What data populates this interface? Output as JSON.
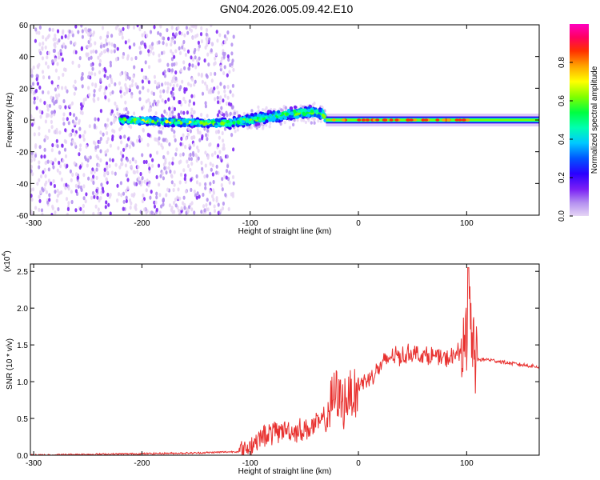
{
  "title": "GN04.2026.005.09.42.E10",
  "colors": {
    "snr_line": "#e8312f",
    "axis": "#000000"
  },
  "chart_data": [
    {
      "type": "heatmap",
      "xlabel": "Height of straight line (km)",
      "ylabel": "Frequency (Hz)",
      "xlim": [
        -303,
        167
      ],
      "ylim": [
        -60,
        60
      ],
      "xticks": [
        -300,
        -200,
        -100,
        0,
        100
      ],
      "xtick_labels": [
        "-300",
        "-200",
        "-100",
        "0",
        "100"
      ],
      "yticks": [
        -60,
        -40,
        -20,
        0,
        20,
        40,
        60
      ],
      "ytick_labels": [
        "-60",
        "-40",
        "-20",
        "0",
        "20",
        "40",
        "60"
      ],
      "colorbar": {
        "label": "Normalized spectral amplitude",
        "range": [
          0,
          1
        ],
        "ticks": [
          0,
          0.2,
          0.4,
          0.6,
          0.8
        ],
        "tick_labels": [
          "0.0",
          "0.2",
          "0.4",
          "0.6",
          "0.8"
        ],
        "colormap": [
          "#e6d5f5",
          "#b38ef0",
          "#7a1ff5",
          "#2a00ff",
          "#0055ff",
          "#00c8ff",
          "#00ffb0",
          "#00ff40",
          "#80ff00",
          "#ffff00",
          "#ffa500",
          "#ff3000",
          "#ff0060",
          "#ff00c0"
        ]
      },
      "band_centerline": {
        "x": [
          -215,
          -180,
          -140,
          -120,
          -100,
          -80,
          -60,
          -45,
          -33,
          -28,
          0,
          50,
          100,
          167
        ],
        "y": [
          0,
          -1,
          -2,
          -2,
          0,
          2,
          4,
          5,
          4,
          -1,
          0,
          0,
          0,
          0
        ]
      },
      "regions": [
        {
          "name": "diffuse noise",
          "x": [
            -303,
            -115
          ],
          "freq_range": [
            -60,
            60
          ]
        },
        {
          "name": "sparse noise",
          "x": [
            -115,
            -30
          ],
          "freq_range": [
            -14,
            14
          ]
        },
        {
          "name": "narrowband signal",
          "x": [
            -30,
            167
          ],
          "freq_range": [
            -4,
            4
          ]
        }
      ]
    },
    {
      "type": "line",
      "xlabel": "Height of straight line (km)",
      "ylabel": "SNR (10 * v/v)",
      "y_multiplier": "(x10",
      "y_exponent": "4",
      "xlim": [
        -303,
        167
      ],
      "ylim": [
        0,
        2.6
      ],
      "xticks": [
        -300,
        -200,
        -100,
        0,
        100
      ],
      "xtick_labels": [
        "-300",
        "-200",
        "-100",
        "0",
        "100"
      ],
      "yticks": [
        0,
        0.5,
        1.0,
        1.5,
        2.0,
        2.5
      ],
      "ytick_labels": [
        "0.0",
        "0.5",
        "1.0",
        "1.5",
        "2.0",
        "2.5"
      ],
      "series": [
        {
          "x": [
            -303,
            -260,
            -200,
            -150,
            -110,
            -100,
            -90,
            -80,
            -70,
            -60,
            -50,
            -40,
            -30,
            -25,
            -20,
            -15,
            -10,
            -5,
            0,
            10,
            20,
            30,
            40,
            50,
            60,
            70,
            80,
            90,
            95,
            100,
            103,
            105,
            108,
            110,
            120,
            140,
            167
          ],
          "y": [
            0.0,
            0.01,
            0.02,
            0.03,
            0.05,
            0.12,
            0.25,
            0.3,
            0.35,
            0.33,
            0.35,
            0.4,
            0.5,
            0.7,
            0.85,
            0.7,
            0.8,
            0.85,
            0.95,
            1.05,
            1.2,
            1.35,
            1.35,
            1.4,
            1.35,
            1.35,
            1.3,
            1.35,
            1.45,
            1.4,
            1.8,
            1.6,
            1.2,
            1.3,
            1.3,
            1.25,
            1.2
          ]
        }
      ]
    }
  ]
}
